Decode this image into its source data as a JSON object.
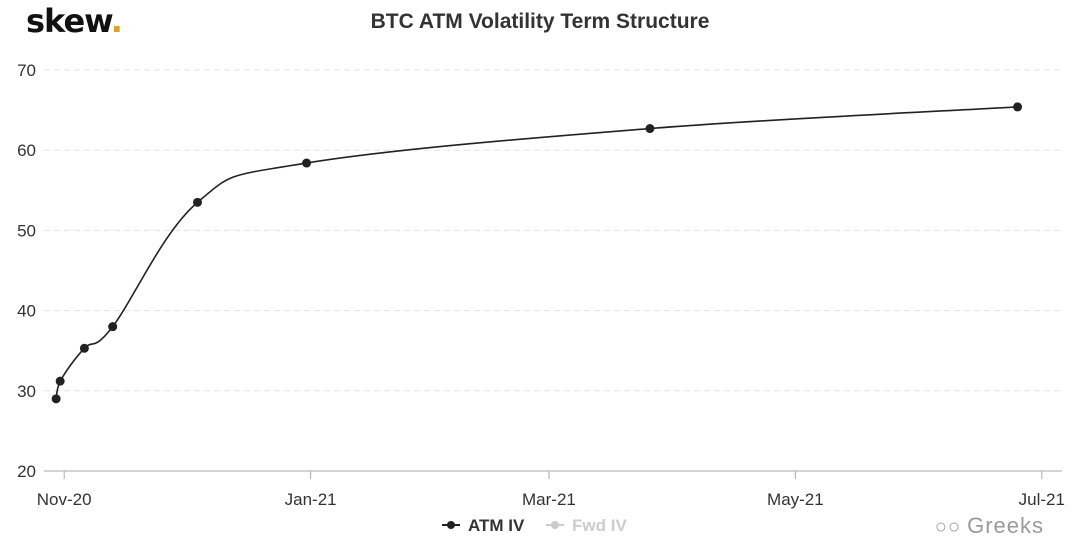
{
  "brand": {
    "logo_text": "skew",
    "logo_dot": ".",
    "accent_color": "#e0a410"
  },
  "watermark": {
    "icon": "wechat-icon",
    "text": "Greeks"
  },
  "chart_data": {
    "type": "line",
    "title": "BTC ATM Volatility Term Structure",
    "xlabel": "",
    "ylabel": "",
    "ylim": [
      20,
      70
    ],
    "yticks": [
      20,
      30,
      40,
      50,
      60,
      70
    ],
    "xlim": [
      "2020-10-27",
      "2021-07-06"
    ],
    "xticks": [
      {
        "date": "2020-11-01",
        "label": "Nov-20"
      },
      {
        "date": "2021-01-01",
        "label": "Jan-21"
      },
      {
        "date": "2021-03-01",
        "label": "Mar-21"
      },
      {
        "date": "2021-05-01",
        "label": "May-21"
      },
      {
        "date": "2021-07-01",
        "label": "Jul-21"
      }
    ],
    "grid": {
      "horizontal": true,
      "vertical": false,
      "style": "dashed"
    },
    "legend_position": "bottom-center",
    "series": [
      {
        "name": "ATM IV",
        "color": "#222222",
        "enabled": true,
        "points": [
          {
            "x": "2020-10-30",
            "y": 29.0
          },
          {
            "x": "2020-10-31",
            "y": 31.2
          },
          {
            "x": "2020-11-06",
            "y": 35.3
          },
          {
            "x": "2020-11-13",
            "y": 38.0
          },
          {
            "x": "2020-12-04",
            "y": 53.5
          },
          {
            "x": "2020-12-31",
            "y": 58.4
          },
          {
            "x": "2021-03-26",
            "y": 62.7
          },
          {
            "x": "2021-06-25",
            "y": 65.4
          }
        ]
      },
      {
        "name": "Fwd IV",
        "color": "#cccccc",
        "enabled": false,
        "points": []
      }
    ]
  }
}
